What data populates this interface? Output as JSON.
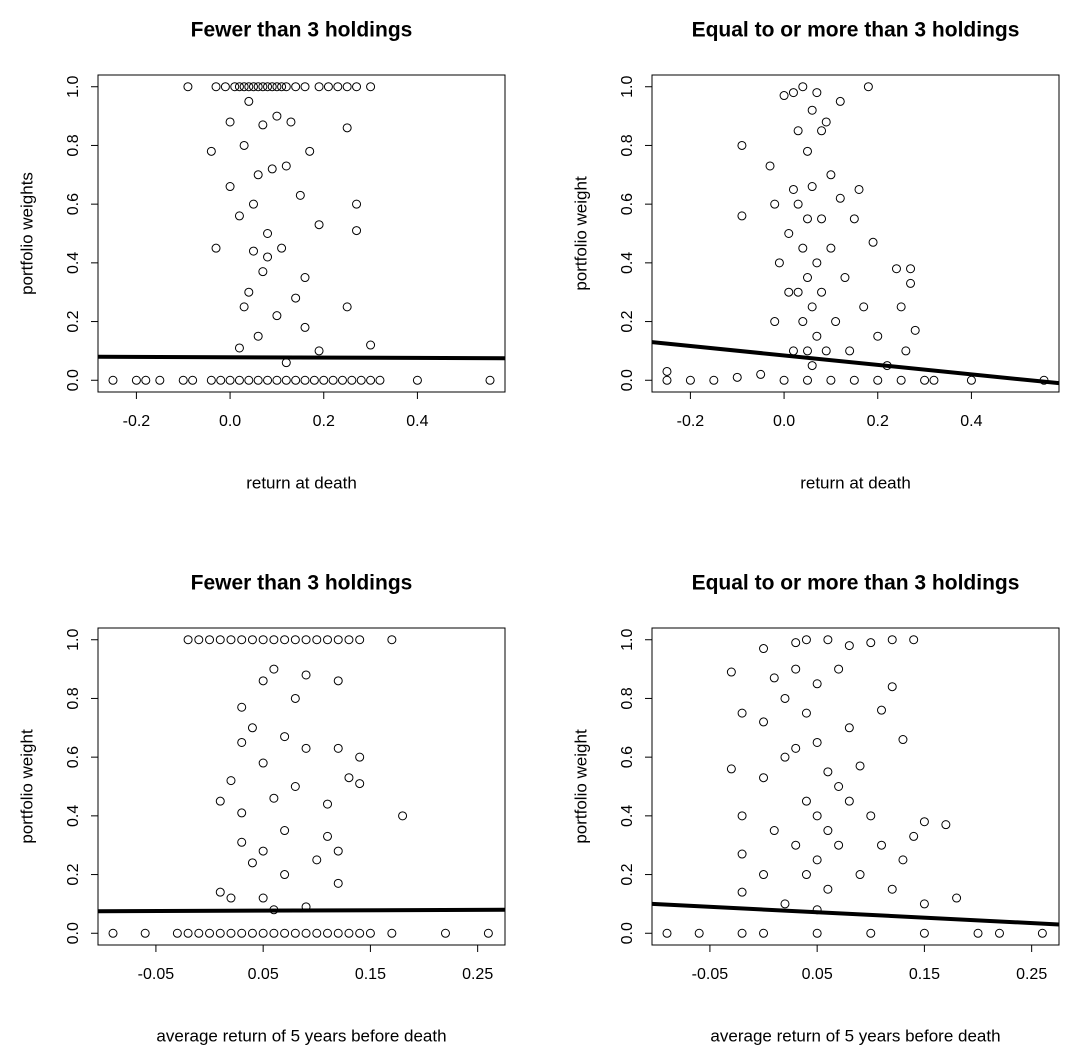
{
  "chart_data": [
    {
      "type": "scatter",
      "title": "Fewer than 3 holdings",
      "xlabel": "return at death",
      "ylabel": "portfolio weights",
      "color": "#000000",
      "xlim": [
        -0.282,
        0.587
      ],
      "ylim": [
        -0.04,
        1.04
      ],
      "xticks": [
        -0.2,
        {
          "value": 0,
          "label": "0.0"
        },
        0.2,
        0.4
      ],
      "yticks": [
        {
          "value": 0,
          "label": "0.0"
        },
        0.2,
        0.4,
        0.6,
        0.8,
        {
          "value": 1,
          "label": "1.0"
        }
      ],
      "x": [
        -0.09,
        -0.03,
        -0.01,
        0.01,
        0.02,
        0.03,
        0.04,
        0.05,
        0.06,
        0.07,
        0.08,
        0.09,
        0.1,
        0.11,
        0.12,
        0.14,
        0.16,
        0.19,
        0.21,
        0.23,
        0.25,
        0.27,
        0.3,
        -0.25,
        -0.2,
        -0.18,
        -0.15,
        -0.1,
        -0.08,
        -0.04,
        -0.02,
        0.0,
        0.02,
        0.04,
        0.06,
        0.08,
        0.1,
        0.12,
        0.14,
        0.16,
        0.18,
        0.2,
        0.22,
        0.24,
        0.26,
        0.28,
        0.3,
        0.32,
        0.4,
        0.555,
        -0.04,
        0.0,
        -0.03,
        0.0,
        0.02,
        0.03,
        0.04,
        0.05,
        0.06,
        0.07,
        0.08,
        0.09,
        0.1,
        0.11,
        0.12,
        0.13,
        0.15,
        0.16,
        0.17,
        0.19,
        0.25,
        0.27,
        0.27,
        0.25,
        0.3,
        0.03,
        0.04,
        0.06,
        0.08,
        0.1,
        0.12,
        0.14,
        0.16,
        0.19,
        0.05,
        0.02,
        0.07
      ],
      "values": [
        1,
        1,
        1,
        1,
        1,
        1,
        1,
        1,
        1,
        1,
        1,
        1,
        1,
        1,
        1,
        1,
        1,
        1,
        1,
        1,
        1,
        1,
        1,
        0,
        0,
        0,
        0,
        0,
        0,
        0,
        0,
        0,
        0,
        0,
        0,
        0,
        0,
        0,
        0,
        0,
        0,
        0,
        0,
        0,
        0,
        0,
        0,
        0,
        0,
        0,
        0.78,
        0.88,
        0.45,
        0.66,
        0.56,
        0.8,
        0.95,
        0.6,
        0.7,
        0.87,
        0.5,
        0.72,
        0.9,
        0.45,
        0.73,
        0.88,
        0.63,
        0.35,
        0.78,
        0.53,
        0.86,
        0.6,
        0.51,
        0.25,
        0.12,
        0.25,
        0.3,
        0.15,
        0.42,
        0.22,
        0.06,
        0.28,
        0.18,
        0.1,
        0.44,
        0.11,
        0.37
      ],
      "fit_line": {
        "x": [
          -0.282,
          0.587
        ],
        "values": [
          0.08,
          0.075
        ]
      }
    },
    {
      "type": "scatter",
      "title": "Equal to or more than 3 holdings",
      "xlabel": "return at death",
      "ylabel": "portfolio weight",
      "color": "#000000",
      "xlim": [
        -0.282,
        0.587
      ],
      "ylim": [
        -0.04,
        1.04
      ],
      "xticks": [
        -0.2,
        {
          "value": 0,
          "label": "0.0"
        },
        0.2,
        0.4
      ],
      "yticks": [
        {
          "value": 0,
          "label": "0.0"
        },
        0.2,
        0.4,
        0.6,
        0.8,
        {
          "value": 1,
          "label": "1.0"
        }
      ],
      "x": [
        -0.25,
        -0.25,
        -0.2,
        -0.15,
        -0.1,
        -0.09,
        -0.09,
        -0.05,
        -0.03,
        -0.02,
        -0.01,
        -0.02,
        0,
        0.01,
        0.01,
        0.02,
        0.02,
        0.03,
        0.03,
        0.03,
        0.04,
        0.04,
        0.04,
        0.05,
        0.05,
        0.05,
        0.05,
        0.06,
        0.06,
        0.06,
        0.06,
        0.07,
        0.07,
        0.08,
        0.08,
        0.08,
        0.09,
        0.1,
        0.1,
        0.11,
        0.12,
        0.12,
        0.13,
        0.14,
        0.15,
        0.16,
        0.17,
        0.18,
        0.19,
        0.2,
        0.22,
        0.24,
        0.25,
        0.26,
        0.27,
        0.27,
        0.28,
        0.3,
        0.32,
        0.4,
        0.555,
        0,
        0.05,
        0.1,
        0.15,
        0.2,
        0.25,
        0.02,
        0.07,
        0.09
      ],
      "values": [
        0.03,
        0,
        0,
        0,
        0.01,
        0.8,
        0.56,
        0.02,
        0.73,
        0.6,
        0.4,
        0.2,
        0.97,
        0.5,
        0.3,
        0.98,
        0.1,
        0.85,
        0.6,
        0.3,
        1,
        0.45,
        0.2,
        0.78,
        0.55,
        0.35,
        0.1,
        0.92,
        0.66,
        0.25,
        0.05,
        0.4,
        0.15,
        0.85,
        0.55,
        0.3,
        0.1,
        0.7,
        0.45,
        0.2,
        0.62,
        0.95,
        0.35,
        0.1,
        0.55,
        0.65,
        0.25,
        1,
        0.47,
        0.15,
        0.05,
        0.38,
        0.25,
        0.1,
        0.38,
        0.33,
        0.17,
        0,
        0,
        0,
        0,
        0,
        0,
        0,
        0,
        0,
        0,
        0.65,
        0.98,
        0.88
      ],
      "fit_line": {
        "x": [
          -0.282,
          0.587
        ],
        "values": [
          0.13,
          -0.01
        ]
      }
    },
    {
      "type": "scatter",
      "title": "Fewer than 3 holdings",
      "xlabel": "average return of 5 years before death",
      "ylabel": "portfolio weight",
      "color": "#000000",
      "xlim": [
        -0.104,
        0.2755
      ],
      "ylim": [
        -0.04,
        1.04
      ],
      "xticks": [
        -0.05,
        0.05,
        0.15,
        0.25
      ],
      "yticks": [
        {
          "value": 0,
          "label": "0.0"
        },
        0.2,
        0.4,
        0.6,
        0.8,
        {
          "value": 1,
          "label": "1.0"
        }
      ],
      "x": [
        -0.02,
        -0.01,
        0.0,
        0.01,
        0.02,
        0.03,
        0.04,
        0.05,
        0.06,
        0.07,
        0.08,
        0.09,
        0.1,
        0.11,
        0.12,
        0.13,
        0.14,
        0.17,
        -0.09,
        -0.06,
        -0.03,
        -0.02,
        -0.01,
        0.0,
        0.01,
        0.02,
        0.03,
        0.04,
        0.05,
        0.06,
        0.07,
        0.08,
        0.09,
        0.1,
        0.11,
        0.12,
        0.13,
        0.14,
        0.15,
        0.17,
        0.22,
        0.26,
        0.01,
        0.02,
        0.01,
        0.02,
        0.03,
        0.03,
        0.03,
        0.03,
        0.04,
        0.04,
        0.05,
        0.05,
        0.05,
        0.05,
        0.06,
        0.06,
        0.06,
        0.07,
        0.07,
        0.07,
        0.08,
        0.08,
        0.09,
        0.09,
        0.09,
        0.1,
        0.11,
        0.11,
        0.12,
        0.12,
        0.12,
        0.12,
        0.13,
        0.14,
        0.14,
        0.18
      ],
      "values": [
        1,
        1,
        1,
        1,
        1,
        1,
        1,
        1,
        1,
        1,
        1,
        1,
        1,
        1,
        1,
        1,
        1,
        1,
        0,
        0,
        0,
        0,
        0,
        0,
        0,
        0,
        0,
        0,
        0,
        0,
        0,
        0,
        0,
        0,
        0,
        0,
        0,
        0,
        0,
        0,
        0,
        0,
        0.45,
        0.52,
        0.14,
        0.12,
        0.77,
        0.65,
        0.41,
        0.31,
        0.7,
        0.24,
        0.86,
        0.58,
        0.28,
        0.12,
        0.9,
        0.46,
        0.08,
        0.67,
        0.35,
        0.2,
        0.8,
        0.5,
        0.63,
        0.88,
        0.09,
        0.25,
        0.44,
        0.33,
        0.86,
        0.63,
        0.17,
        0.28,
        0.53,
        0.6,
        0.51,
        0.4
      ],
      "fit_line": {
        "x": [
          -0.104,
          0.2755
        ],
        "values": [
          0.075,
          0.08
        ]
      }
    },
    {
      "type": "scatter",
      "title": "Equal to or more than 3 holdings",
      "xlabel": "average return of 5 years before death",
      "ylabel": "portfolio weight",
      "color": "#000000",
      "xlim": [
        -0.104,
        0.2755
      ],
      "ylim": [
        -0.04,
        1.04
      ],
      "xticks": [
        -0.05,
        0.05,
        0.15,
        0.25
      ],
      "yticks": [
        {
          "value": 0,
          "label": "0.0"
        },
        0.2,
        0.4,
        0.6,
        0.8,
        {
          "value": 1,
          "label": "1.0"
        }
      ],
      "x": [
        -0.09,
        -0.06,
        -0.03,
        -0.03,
        -0.02,
        -0.02,
        -0.02,
        -0.02,
        -0.02,
        0,
        0,
        0,
        0,
        0.01,
        0.01,
        0.02,
        0.02,
        0.02,
        0.03,
        0.03,
        0.03,
        0.03,
        0.04,
        0.04,
        0.04,
        0.04,
        0.05,
        0.05,
        0.05,
        0.05,
        0.05,
        0.06,
        0.06,
        0.06,
        0.06,
        0.07,
        0.07,
        0.07,
        0.08,
        0.08,
        0.08,
        0.09,
        0.09,
        0.1,
        0.1,
        0.11,
        0.11,
        0.12,
        0.12,
        0.12,
        0.13,
        0.13,
        0.14,
        0.14,
        0.15,
        0.15,
        0.17,
        0.18,
        0.1,
        0.15,
        0.2,
        0.22,
        0.26,
        0,
        0.05
      ],
      "values": [
        0,
        0,
        0.89,
        0.56,
        0.75,
        0.4,
        0.14,
        0.27,
        0,
        0.97,
        0.72,
        0.53,
        0.2,
        0.87,
        0.35,
        0.8,
        0.6,
        0.1,
        0.99,
        0.9,
        0.63,
        0.3,
        1,
        0.75,
        0.45,
        0.2,
        0.85,
        0.65,
        0.4,
        0.25,
        0.08,
        1,
        0.55,
        0.35,
        0.15,
        0.9,
        0.5,
        0.3,
        0.98,
        0.7,
        0.45,
        0.57,
        0.2,
        0.99,
        0.4,
        0.76,
        0.3,
        1,
        0.84,
        0.15,
        0.66,
        0.25,
        1,
        0.33,
        0.38,
        0.1,
        0.37,
        0.12,
        0,
        0,
        0,
        0,
        0,
        0,
        0
      ],
      "fit_line": {
        "x": [
          -0.104,
          0.2755
        ],
        "values": [
          0.1,
          0.03
        ]
      }
    }
  ]
}
